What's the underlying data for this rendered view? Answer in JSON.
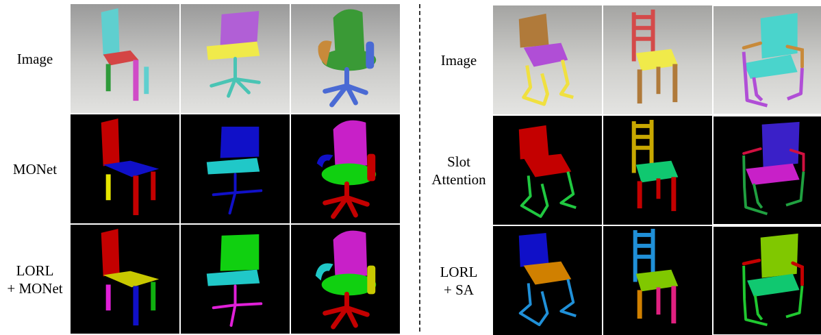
{
  "left_panel": {
    "row_labels": [
      "Image",
      "MONet",
      "LORL\n+ MONet"
    ],
    "columns": [
      {
        "image": {
          "back": "#5fcfcf",
          "seat": "#d44545",
          "legs": [
            "#2f9a3a",
            "#d04ac7",
            "#5fcfcf"
          ]
        },
        "monet": {
          "back": "#c40000",
          "seat": "#1010c8",
          "legs": [
            "#e6e600",
            "#c40000",
            "#c40000"
          ]
        },
        "lorl": {
          "back": "#c40000",
          "seat": "#c8c800",
          "legs": [
            "#e020d8",
            "#1010c8",
            "#10b010"
          ]
        }
      },
      {
        "image": {
          "back": "#b15fd6",
          "seat": "#f0ea4a",
          "base": "#49c4b4"
        },
        "monet": {
          "back": "#1010c8",
          "seat": "#20c8c8",
          "base": "#1010c8"
        },
        "lorl": {
          "back": "#10d010",
          "seat": "#20c8c8",
          "base": "#e020d8"
        }
      },
      {
        "image": {
          "back": "#3a9a36",
          "seat": "#3a9a36",
          "arm_left": "#c88a3a",
          "arm_right": "#4a6ad4",
          "base": "#4a6ad4"
        },
        "monet": {
          "back": "#c820c8",
          "seat": "#10d010",
          "arm_left": "#1010c8",
          "arm_right": "#c40000",
          "base": "#c40000"
        },
        "lorl": {
          "back": "#c820c8",
          "seat": "#10d010",
          "arm_left": "#20c8c8",
          "arm_right": "#c8c800",
          "base": "#c40000"
        }
      }
    ]
  },
  "right_panel": {
    "row_labels": [
      "Image",
      "Slot\nAttention",
      "LORL\n+ SA"
    ],
    "columns": [
      {
        "image": {
          "back": "#b07a3a",
          "seat": "#b04ed6",
          "frame": "#f0e040"
        },
        "slot": {
          "back": "#c40000",
          "seat": "#c40000",
          "frame": "#20c840"
        },
        "lorl": {
          "back": "#1010c8",
          "seat": "#d08000",
          "frame": "#2090d8"
        }
      },
      {
        "image": {
          "back": "#d44a4a",
          "seat": "#f0ea4a",
          "legs": [
            "#b07a3a",
            "#b07a3a",
            "#b07a3a"
          ]
        },
        "slot": {
          "back": "#c8a800",
          "seat": "#10c870",
          "legs": [
            "#c40000",
            "#c40000",
            "#c40000"
          ]
        },
        "lorl": {
          "back": "#2090d8",
          "seat": "#80c800",
          "legs": [
            "#d08000",
            "#e02080",
            "#e02080"
          ]
        }
      },
      {
        "image": {
          "back": "#4ad4cc",
          "seat": "#4ad4cc",
          "frame": "#b04ed6",
          "arm": "#c88a3a"
        },
        "slot": {
          "back": "#3a20c8",
          "seat": "#c820c8",
          "frame": "#20a040",
          "arm": "#d01040"
        },
        "lorl": {
          "back": "#80c800",
          "seat": "#10c870",
          "frame": "#20c830",
          "arm": "#c40000"
        }
      }
    ]
  }
}
